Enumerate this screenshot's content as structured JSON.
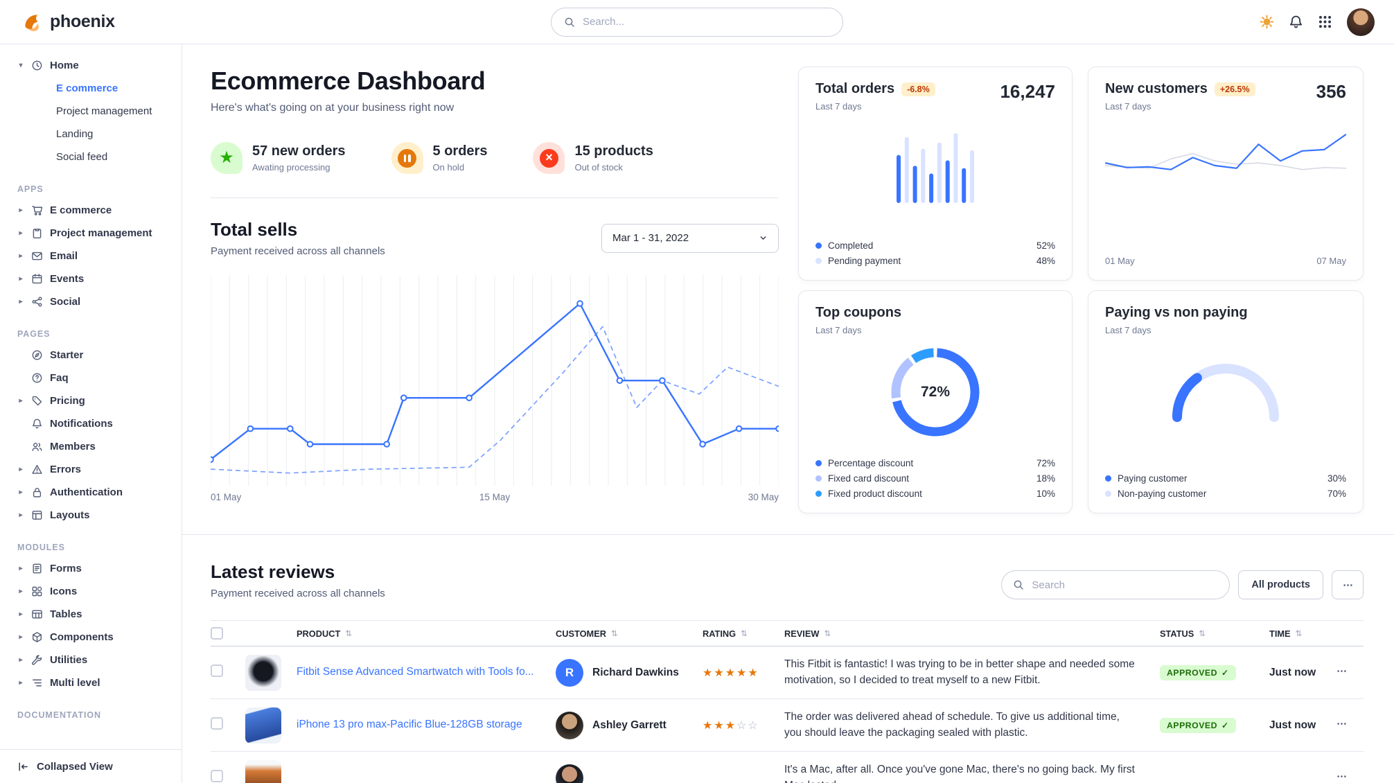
{
  "brand": {
    "name": "phoenix"
  },
  "navbar": {
    "search_placeholder": "Search..."
  },
  "sidebar": {
    "home": {
      "label": "Home",
      "icon": "clock",
      "children": [
        {
          "label": "E commerce",
          "active": true
        },
        {
          "label": "Project management"
        },
        {
          "label": "Landing"
        },
        {
          "label": "Social feed"
        }
      ]
    },
    "sections": {
      "apps": {
        "title": "APPS",
        "items": [
          {
            "label": "E commerce",
            "icon": "cart"
          },
          {
            "label": "Project management",
            "icon": "clipboard"
          },
          {
            "label": "Email",
            "icon": "envelope"
          },
          {
            "label": "Events",
            "icon": "calendar"
          },
          {
            "label": "Social",
            "icon": "share"
          }
        ]
      },
      "pages": {
        "title": "PAGES",
        "items": [
          {
            "label": "Starter",
            "icon": "compass",
            "leaf": true
          },
          {
            "label": "Faq",
            "icon": "question",
            "leaf": true
          },
          {
            "label": "Pricing",
            "icon": "tag"
          },
          {
            "label": "Notifications",
            "icon": "bell",
            "leaf": true
          },
          {
            "label": "Members",
            "icon": "users",
            "leaf": true
          },
          {
            "label": "Errors",
            "icon": "warning"
          },
          {
            "label": "Authentication",
            "icon": "lock"
          },
          {
            "label": "Layouts",
            "icon": "layout"
          }
        ]
      },
      "modules": {
        "title": "MODULES",
        "items": [
          {
            "label": "Forms",
            "icon": "form"
          },
          {
            "label": "Icons",
            "icon": "shapes"
          },
          {
            "label": "Tables",
            "icon": "table"
          },
          {
            "label": "Components",
            "icon": "cube"
          },
          {
            "label": "Utilities",
            "icon": "wrench"
          },
          {
            "label": "Multi level",
            "icon": "list"
          }
        ]
      },
      "documentation": {
        "title": "DOCUMENTATION"
      }
    },
    "footer": {
      "label": "Collapsed View"
    }
  },
  "header": {
    "title": "Ecommerce Dashboard",
    "subtitle": "Here's what's going on at your business right now"
  },
  "stats": [
    {
      "value": "57 new orders",
      "label": "Awating processing",
      "icon": "star"
    },
    {
      "value": "5 orders",
      "label": "On hold",
      "icon": "pause"
    },
    {
      "value": "15 products",
      "label": "Out of stock",
      "icon": "x"
    }
  ],
  "total_sells": {
    "title": "Total sells",
    "subtitle": "Payment received across all channels",
    "date_range": "Mar 1 - 31, 2022",
    "x_labels": [
      "01 May",
      "15 May",
      "30 May"
    ]
  },
  "cards": {
    "total_orders": {
      "title": "Total orders",
      "badge": "-6.8%",
      "period": "Last 7 days",
      "value": "16,247",
      "legend": [
        {
          "label": "Completed",
          "value": "52%",
          "color": "#3874ff"
        },
        {
          "label": "Pending payment",
          "value": "48%",
          "color": "#d9e2ff"
        }
      ]
    },
    "new_customers": {
      "title": "New customers",
      "badge": "+26.5%",
      "period": "Last 7 days",
      "value": "356",
      "x_labels": [
        "01 May",
        "07 May"
      ]
    },
    "top_coupons": {
      "title": "Top coupons",
      "period": "Last 7 days",
      "center_value": "72%",
      "legend": [
        {
          "label": "Percentage discount",
          "value": "72%",
          "color": "#3874ff"
        },
        {
          "label": "Fixed card discount",
          "value": "18%",
          "color": "#b0c2ff"
        },
        {
          "label": "Fixed product discount",
          "value": "10%",
          "color": "#2d9cff"
        }
      ]
    },
    "paying": {
      "title": "Paying vs non paying",
      "period": "Last 7 days",
      "legend": [
        {
          "label": "Paying customer",
          "value": "30%",
          "color": "#3874ff"
        },
        {
          "label": "Non-paying customer",
          "value": "70%",
          "color": "#d9e2ff"
        }
      ]
    }
  },
  "reviews": {
    "title": "Latest reviews",
    "subtitle": "Payment received across all channels",
    "search_placeholder": "Search",
    "all_products_label": "All products",
    "columns": [
      "PRODUCT",
      "CUSTOMER",
      "RATING",
      "REVIEW",
      "STATUS",
      "TIME"
    ],
    "rows": [
      {
        "product": "Fitbit Sense Advanced Smartwatch with Tools fo...",
        "thumb": "watch",
        "customer": "Richard Dawkins",
        "avatar": {
          "type": "initial",
          "text": "R"
        },
        "rating": 5,
        "review": "This Fitbit is fantastic! I was trying to be in better shape and needed some motivation, so I decided to treat myself to a new Fitbit.",
        "status": "APPROVED",
        "time": "Just now"
      },
      {
        "product": "iPhone 13 pro max-Pacific Blue-128GB storage",
        "thumb": "phone",
        "customer": "Ashley Garrett",
        "avatar": {
          "type": "photo1"
        },
        "rating": 3,
        "review": "The order was delivered ahead of schedule. To give us additional time, you should leave the packaging sealed with plastic.",
        "status": "APPROVED",
        "time": "Just now"
      },
      {
        "product": "",
        "thumb": "laptop",
        "customer": "",
        "avatar": {
          "type": "photo2"
        },
        "review": "It's a Mac, after all. Once you've gone Mac, there's no going back. My first Mac lasted..."
      }
    ]
  },
  "charts": {
    "total_sells": {
      "type": "line",
      "note": "values are relative heights 0-100 (no y-axis shown in UI)",
      "series": [
        {
          "name": "solid",
          "x": [
            0,
            7,
            14,
            17.5,
            31,
            34,
            45.5,
            65,
            72,
            79.5,
            86.6,
            93,
            100
          ],
          "v": [
            10,
            26,
            26,
            18,
            18,
            42,
            42,
            91,
            51,
            51,
            18,
            26,
            26
          ]
        },
        {
          "name": "dashed",
          "x": [
            0,
            14,
            28,
            45.5,
            51,
            62,
            69,
            75,
            79.5,
            86,
            91,
            100
          ],
          "v": [
            5,
            3,
            5,
            6,
            20,
            55,
            79,
            37,
            51,
            44,
            58,
            48
          ]
        }
      ],
      "x_labels": [
        "01 May",
        "15 May",
        "30 May"
      ]
    },
    "total_orders": {
      "type": "bar",
      "values": [
        62,
        85,
        48,
        70,
        38,
        78,
        55,
        90,
        45,
        68
      ],
      "alternating": [
        "completed",
        "pending"
      ]
    },
    "new_customers": {
      "type": "line",
      "series": [
        {
          "name": "previous",
          "color": "#d8dae5",
          "v": [
            48,
            46,
            44,
            58,
            66,
            55,
            50,
            52,
            48,
            42,
            45,
            44
          ]
        },
        {
          "name": "current",
          "color": "#3874ff",
          "v": [
            52,
            45,
            46,
            42,
            60,
            48,
            44,
            80,
            55,
            70,
            72,
            95
          ]
        }
      ]
    },
    "top_coupons": {
      "type": "donut",
      "segments": [
        72,
        18,
        10
      ]
    },
    "paying": {
      "type": "gauge",
      "percent": 30
    }
  }
}
